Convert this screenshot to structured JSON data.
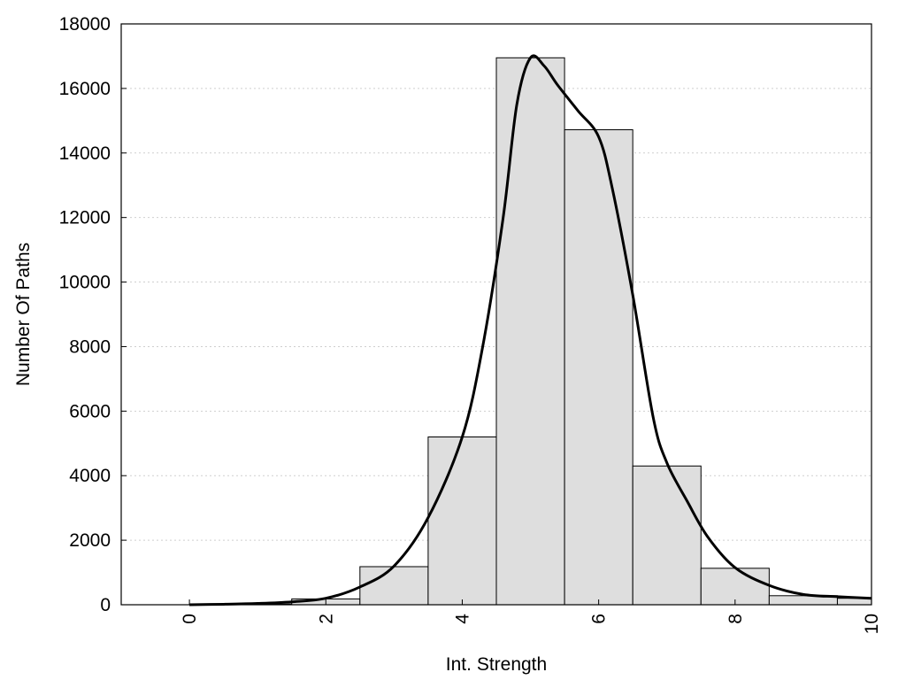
{
  "chart_data": {
    "type": "bar",
    "title": "",
    "xlabel": "Int. Strength",
    "ylabel": "Number Of Paths",
    "xlim": [
      -1,
      10
    ],
    "ylim": [
      0,
      18000
    ],
    "grid": "horizontal dotted",
    "x_ticks": [
      0,
      2,
      4,
      6,
      8,
      10
    ],
    "y_ticks": [
      0,
      2000,
      4000,
      6000,
      8000,
      10000,
      12000,
      14000,
      16000,
      18000
    ],
    "categories": [
      0,
      1,
      2,
      3,
      4,
      5,
      6,
      7,
      8,
      9,
      10
    ],
    "values": [
      0,
      20,
      180,
      1180,
      5200,
      16950,
      14720,
      4300,
      1130,
      280,
      200
    ],
    "curve": {
      "x": [
        0,
        0.5,
        1,
        1.5,
        2,
        2.5,
        3,
        3.5,
        4,
        4.3,
        4.6,
        4.8,
        5,
        5.2,
        5.4,
        5.7,
        6,
        6.2,
        6.5,
        6.8,
        7,
        7.3,
        7.6,
        8,
        8.5,
        9,
        9.5,
        10
      ],
      "y": [
        0,
        15,
        40,
        90,
        200,
        550,
        1200,
        2700,
        5200,
        8000,
        12000,
        15500,
        16950,
        16700,
        16100,
        15300,
        14500,
        12900,
        9600,
        5800,
        4400,
        3200,
        2100,
        1150,
        600,
        320,
        250,
        200
      ]
    }
  }
}
